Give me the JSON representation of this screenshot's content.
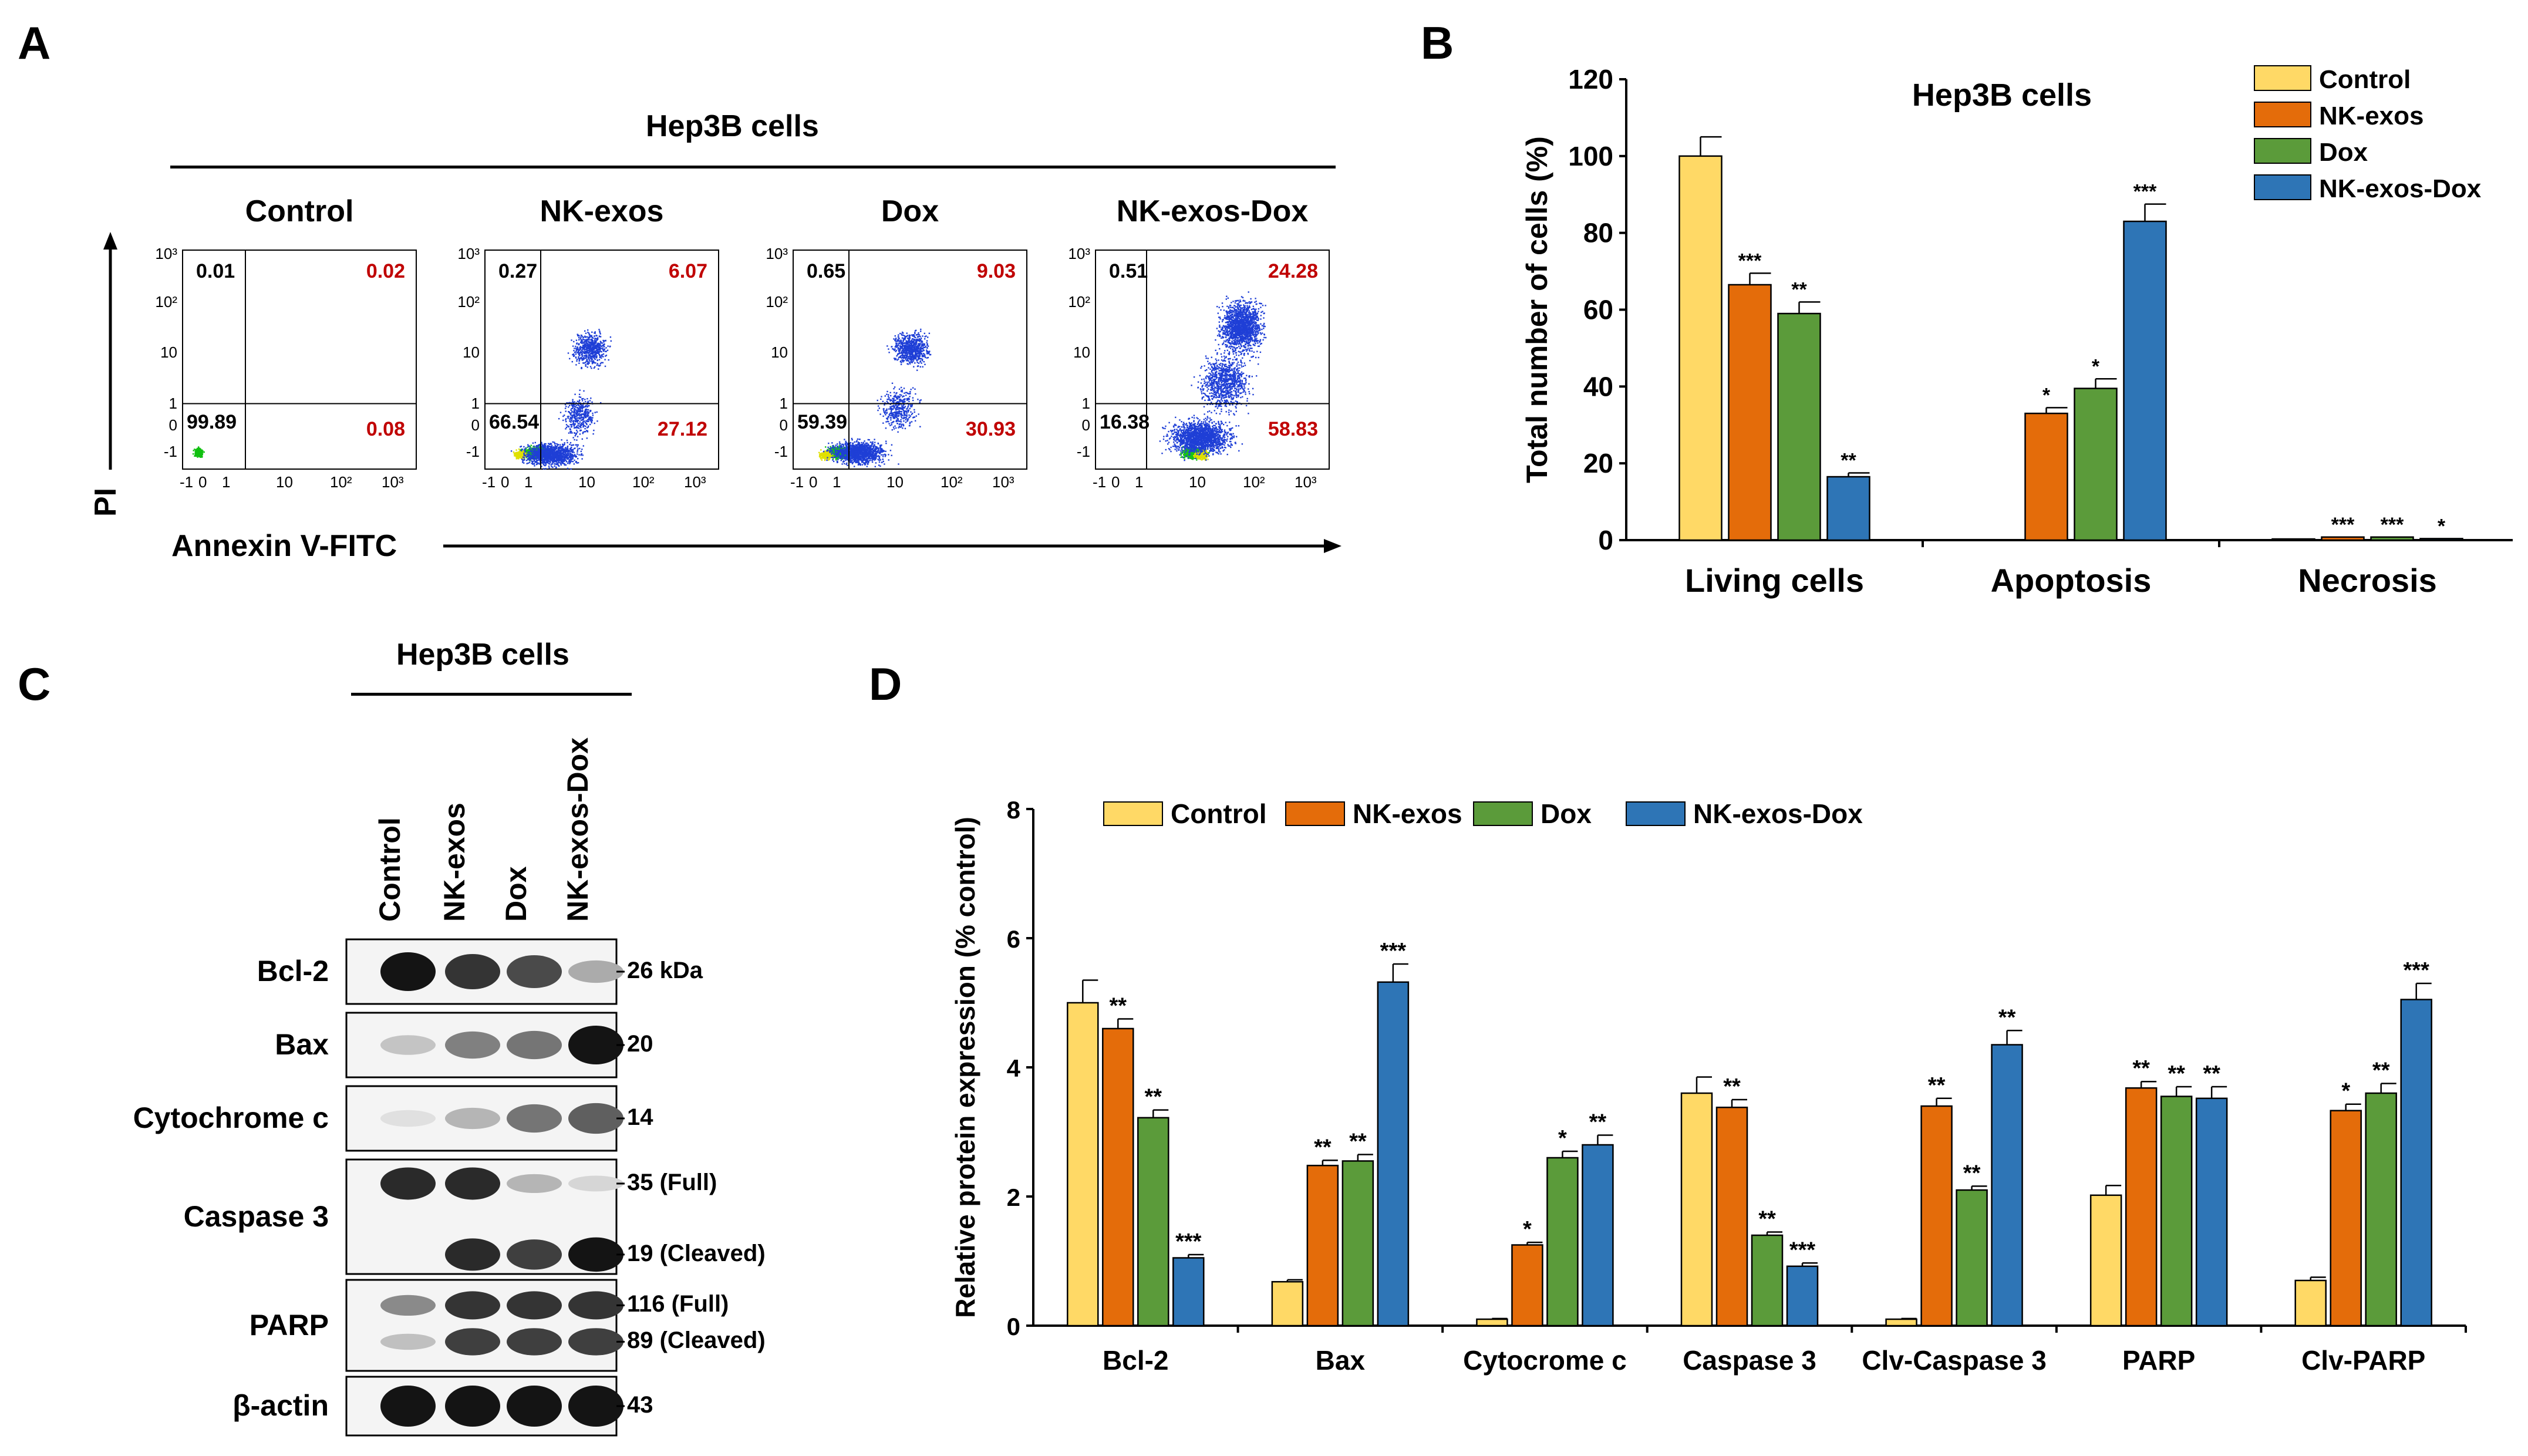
{
  "colors": {
    "control": "#ffd966",
    "nk_exos": "#e46c0a",
    "dox": "#5b9b3a",
    "nk_exos_dox": "#2e75b6",
    "red": "#c00000",
    "dot": "#1f3fd6"
  },
  "panels": {
    "a": "A",
    "b": "B",
    "c": "C",
    "d": "D"
  },
  "panelA": {
    "title": "Hep3B cells",
    "x_label": "Annexin V-FITC",
    "y_label": "PI",
    "x_ticks": [
      "-1",
      "0",
      "1",
      "10",
      "10²",
      "10³"
    ],
    "y_ticks": [
      "10³",
      "10²",
      "10",
      "1",
      "0",
      "-1"
    ],
    "plots": [
      {
        "title": "Control",
        "q_ul": "0.01",
        "q_ur": "0.02",
        "q_ll": "99.89",
        "q_lr": "0.08"
      },
      {
        "title": "NK-exos",
        "q_ul": "0.27",
        "q_ur": "6.07",
        "q_ll": "66.54",
        "q_lr": "27.12"
      },
      {
        "title": "Dox",
        "q_ul": "0.65",
        "q_ur": "9.03",
        "q_ll": "59.39",
        "q_lr": "30.93"
      },
      {
        "title": "NK-exos-Dox",
        "q_ul": "0.51",
        "q_ur": "24.28",
        "q_ll": "16.38",
        "q_lr": "58.83"
      }
    ]
  },
  "panelC": {
    "title": "Hep3B cells",
    "lanes": [
      "Control",
      "NK-exos",
      "Dox",
      "NK-exos-Dox"
    ],
    "rows": [
      {
        "label": "Bcl-2",
        "kda": [
          "26 kDa"
        ]
      },
      {
        "label": "Bax",
        "kda": [
          "20"
        ]
      },
      {
        "label": "Cytochrome  c",
        "kda": [
          "14"
        ]
      },
      {
        "label": "Caspase 3",
        "kda": [
          "35 (Full)",
          "19 (Cleaved)"
        ]
      },
      {
        "label": "PARP",
        "kda": [
          "116 (Full)",
          "89 (Cleaved)"
        ]
      },
      {
        "label": "β-actin",
        "kda": [
          "43"
        ]
      }
    ]
  },
  "chart_data": [
    {
      "type": "bar",
      "title": "Hep3B cells",
      "ylabel": "Total number of cells (%)",
      "xlabel": "",
      "ylim": [
        0,
        120
      ],
      "yticks": [
        0,
        20,
        40,
        60,
        80,
        100,
        120
      ],
      "categories": [
        "Living cells",
        "Apoptosis",
        "Necrosis"
      ],
      "legend_position": "top-right",
      "series": [
        {
          "name": "Control",
          "values": [
            100,
            0,
            0.3
          ],
          "errors": [
            5,
            0,
            0
          ],
          "sig": [
            "",
            "",
            ""
          ]
        },
        {
          "name": "NK-exos",
          "values": [
            66.5,
            33,
            0.8
          ],
          "errors": [
            3,
            1.5,
            0
          ],
          "sig": [
            "***",
            "*",
            "***"
          ]
        },
        {
          "name": "Dox",
          "values": [
            59,
            39.5,
            0.8
          ],
          "errors": [
            3,
            2.5,
            0
          ],
          "sig": [
            "**",
            "*",
            "***"
          ]
        },
        {
          "name": "NK-exos-Dox",
          "values": [
            16.5,
            83,
            0.4
          ],
          "errors": [
            1,
            4.5,
            0
          ],
          "sig": [
            "**",
            "***",
            "*"
          ]
        }
      ]
    },
    {
      "type": "bar",
      "title": "",
      "ylabel": "Relative protein expression (% control)",
      "xlabel": "",
      "ylim": [
        0,
        8
      ],
      "yticks": [
        0,
        2,
        4,
        6,
        8
      ],
      "categories": [
        "Bcl-2",
        "Bax",
        "Cytocrome c",
        "Caspase 3",
        "Clv-Caspase 3",
        "PARP",
        "Clv-PARP"
      ],
      "legend_position": "top-left",
      "series": [
        {
          "name": "Control",
          "values": [
            5.0,
            0.68,
            0.1,
            3.6,
            0.1,
            2.02,
            0.7
          ],
          "errors": [
            0.35,
            0.03,
            0.01,
            0.25,
            0.01,
            0.15,
            0.05
          ],
          "sig": [
            "",
            "",
            "",
            "",
            "",
            "",
            ""
          ]
        },
        {
          "name": "NK-exos",
          "values": [
            4.6,
            2.48,
            1.25,
            3.38,
            3.4,
            3.68,
            3.33
          ],
          "errors": [
            0.15,
            0.08,
            0.04,
            0.12,
            0.12,
            0.1,
            0.1
          ],
          "sig": [
            "**",
            "**",
            "*",
            "**",
            "**",
            "**",
            "*"
          ]
        },
        {
          "name": "Dox",
          "values": [
            3.22,
            2.55,
            2.6,
            1.4,
            2.1,
            3.55,
            3.6
          ],
          "errors": [
            0.12,
            0.1,
            0.1,
            0.05,
            0.06,
            0.15,
            0.15
          ],
          "sig": [
            "**",
            "**",
            "*",
            "**",
            "**",
            "**",
            "**"
          ]
        },
        {
          "name": "NK-exos-Dox",
          "values": [
            1.05,
            5.32,
            2.8,
            0.92,
            4.35,
            3.52,
            5.05
          ],
          "errors": [
            0.05,
            0.28,
            0.15,
            0.05,
            0.22,
            0.18,
            0.25
          ],
          "sig": [
            "***",
            "***",
            "**",
            "***",
            "**",
            "**",
            "***"
          ]
        }
      ]
    }
  ]
}
